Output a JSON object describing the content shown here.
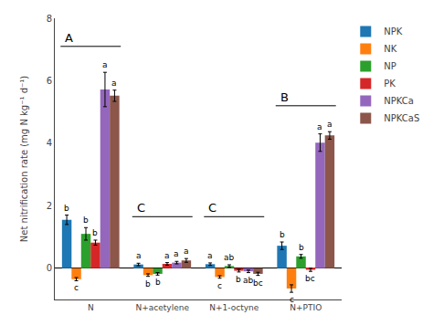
{
  "chart_data": {
    "type": "bar",
    "categories": [
      "N",
      "N+acetylene",
      "N+1-octyne",
      "N+PTIO"
    ],
    "series": [
      {
        "name": "NPK",
        "values": [
          1.55,
          0.12,
          0.13,
          0.72
        ],
        "errors": [
          0.15,
          0.04,
          0.04,
          0.12
        ],
        "labels": [
          "b",
          "a",
          "a",
          "b"
        ]
      },
      {
        "name": "NK",
        "values": [
          -0.35,
          -0.22,
          -0.28,
          -0.65
        ],
        "errors": [
          0.05,
          0.04,
          0.04,
          0.12
        ],
        "labels": [
          "c",
          "b",
          "c",
          "c"
        ]
      },
      {
        "name": "NP",
        "values": [
          1.1,
          -0.18,
          0.07,
          0.38
        ],
        "errors": [
          0.2,
          0.04,
          0.04,
          0.06
        ],
        "labels": [
          "b",
          "b",
          "ab",
          "b"
        ]
      },
      {
        "name": "PK",
        "values": [
          0.82,
          0.14,
          -0.08,
          -0.05
        ],
        "errors": [
          0.08,
          0.04,
          0.04,
          0.05
        ],
        "labels": [
          "b",
          "a",
          "b",
          "bc"
        ]
      },
      {
        "name": "NPKCa",
        "values": [
          5.72,
          0.18,
          -0.1,
          4.02
        ],
        "errors": [
          0.55,
          0.04,
          0.04,
          0.28
        ],
        "labels": [
          "a",
          "a",
          "ab",
          "a"
        ]
      },
      {
        "name": "NPKCaS",
        "values": [
          5.52,
          0.25,
          -0.18,
          4.25
        ],
        "errors": [
          0.18,
          0.06,
          0.05,
          0.12
        ],
        "labels": [
          "a",
          "a",
          "bc",
          "a"
        ]
      }
    ],
    "annotations": [
      {
        "text": "A",
        "category": "N",
        "y": 7.1
      },
      {
        "text": "C",
        "category": "N+acetylene",
        "y": 1.65
      },
      {
        "text": "C",
        "category": "N+1-octyne",
        "y": 1.65
      },
      {
        "text": "B",
        "category": "N+PTIO",
        "y": 5.2
      }
    ],
    "ylabel": "Net nitrification rate (mg N kg⁻¹ d⁻¹)",
    "ylim": [
      -1.0,
      8.0
    ],
    "yticks": [
      0,
      2,
      4,
      6,
      8
    ],
    "grid": false,
    "legend": "right"
  }
}
